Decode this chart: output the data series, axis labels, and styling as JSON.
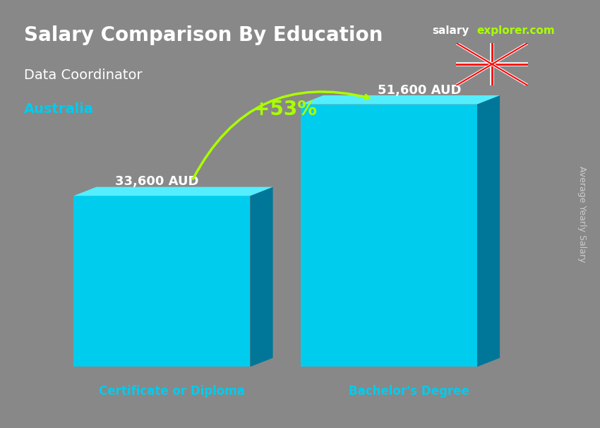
{
  "title1": "Salary Comparison By Education",
  "title2": "Data Coordinator",
  "title3": "Australia",
  "website_salary": "salary",
  "website_explorer": "explorer.com",
  "categories": [
    "Certificate or Diploma",
    "Bachelor's Degree"
  ],
  "values": [
    33600,
    51600
  ],
  "labels": [
    "33,600 AUD",
    "51,600 AUD"
  ],
  "pct_change": "+53%",
  "bar_color_main": "#00d4f0",
  "bar_color_dark": "#0099bb",
  "bar_color_top": "#00eeff",
  "bar_color_right": "#0077aa",
  "cat_label_color": "#00ccee",
  "title_color": "#ffffff",
  "subtitle_color": "#ffffff",
  "australia_color": "#00ccee",
  "pct_color": "#aaff00",
  "label_color": "#ffffff",
  "background_color": "#7a7a7a",
  "ylabel_text": "Average Yearly Salary",
  "ylabel_color": "#cccccc",
  "bar_width": 0.35,
  "ylim": [
    0,
    70000
  ],
  "x_positions": [
    0.3,
    0.75
  ],
  "fig_width": 8.5,
  "fig_height": 6.06
}
